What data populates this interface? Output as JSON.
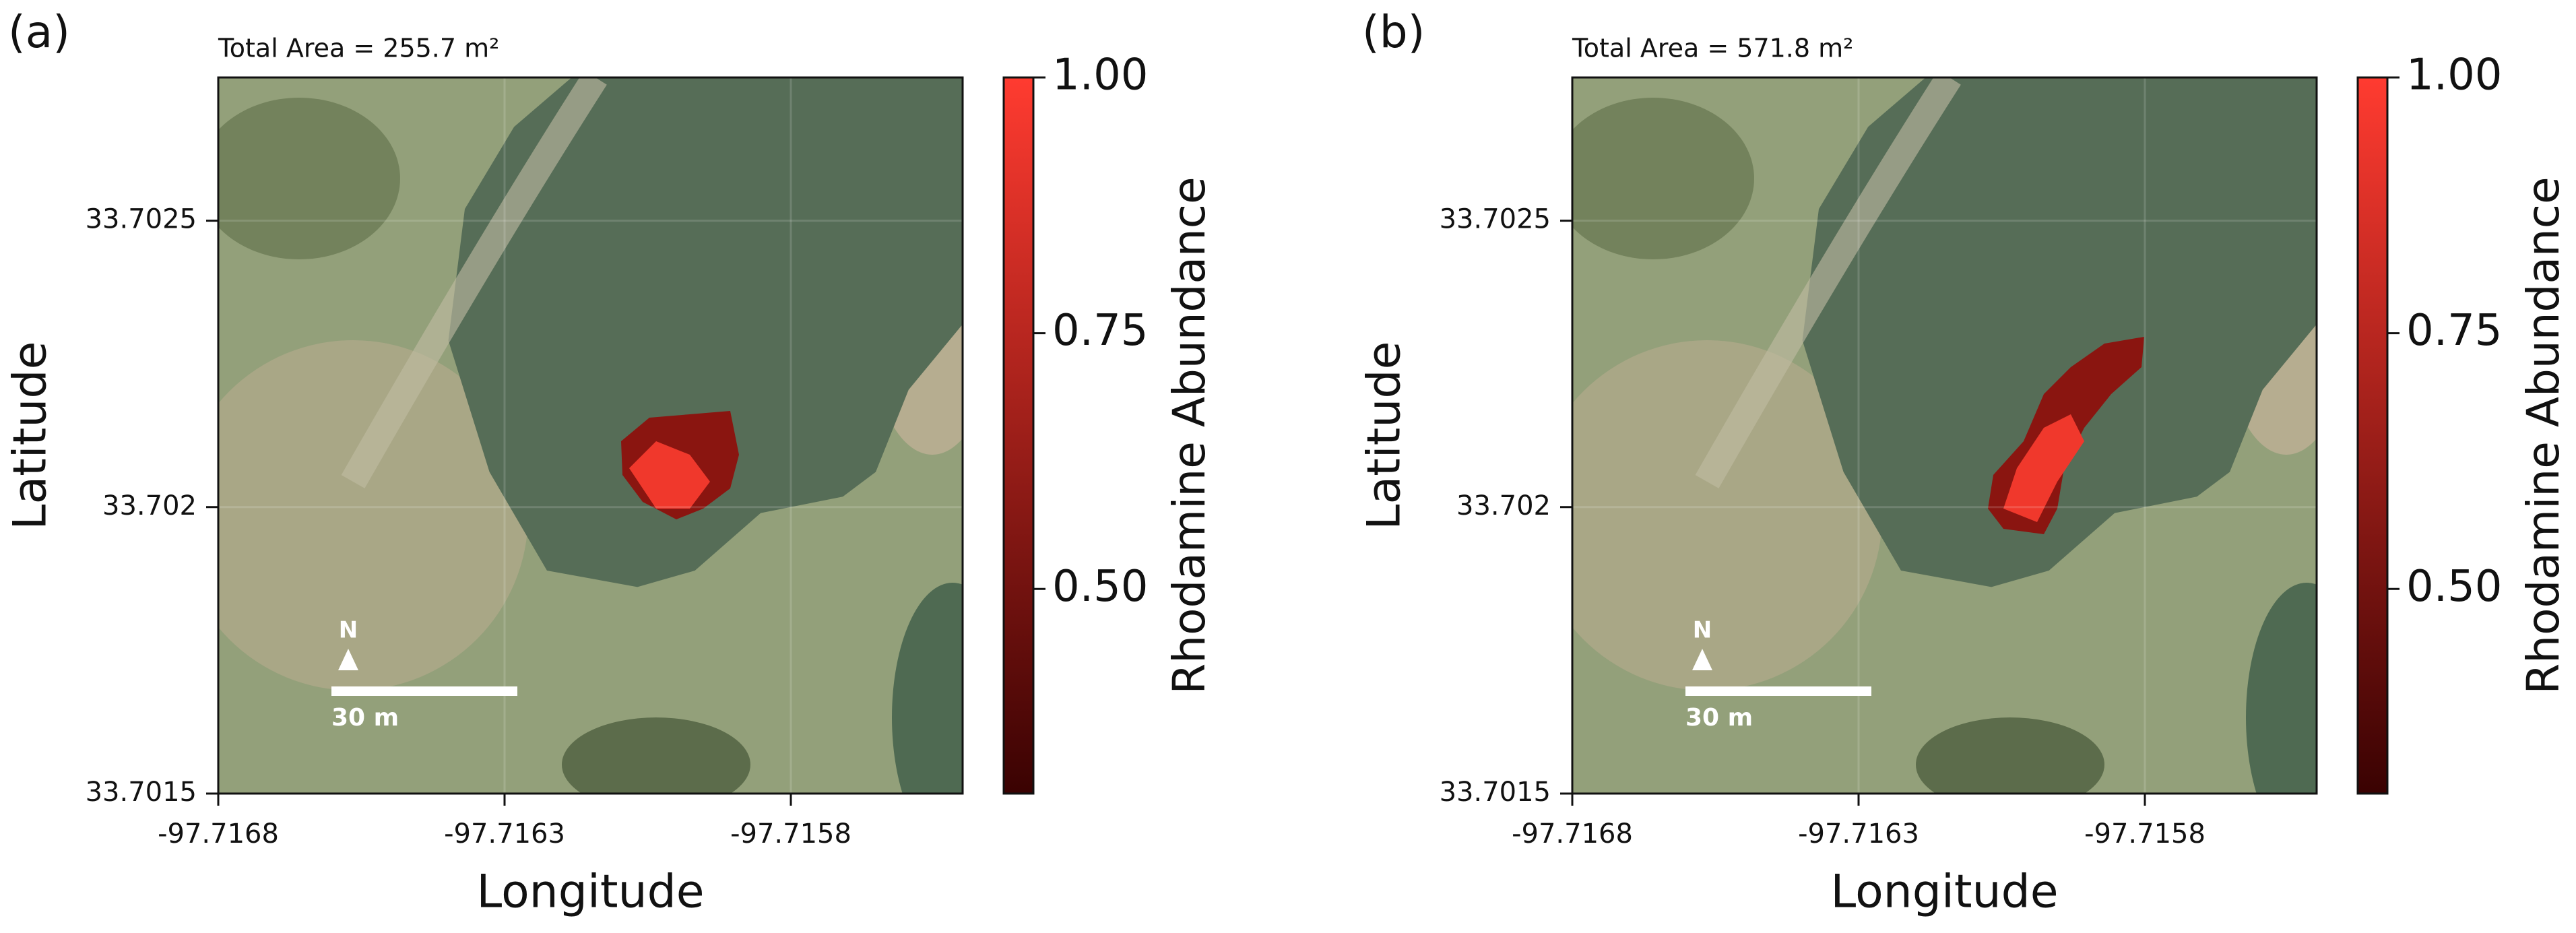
{
  "chart_data": [
    {
      "type": "map",
      "panel_label": "(a)",
      "annotation": "Total Area = 255.7 m²",
      "xlabel": "Longitude",
      "ylabel": "Latitude",
      "colorbar_label": "Rhodamine Abundance",
      "xlim": [
        -97.7168,
        -97.7155
      ],
      "ylim": [
        33.7015,
        33.70275
      ],
      "xticks": [
        -97.7168,
        -97.7163,
        -97.7158
      ],
      "yticks": [
        33.7015,
        33.702,
        33.7025
      ],
      "grid": true,
      "colorbar_lim": [
        0.3,
        1.0
      ],
      "colorbar_ticks": [
        {
          "value": 0.5,
          "label": "0.50"
        },
        {
          "value": 0.75,
          "label": "0.75"
        },
        {
          "value": 1.0,
          "label": "1.00"
        }
      ],
      "cmap_colors": [
        "#3a0202",
        "#ff3b30"
      ],
      "north_label": "N",
      "scale_bar_label": "30 m"
    },
    {
      "type": "map",
      "panel_label": "(b)",
      "annotation": "Total Area = 571.8 m²",
      "xlabel": "Longitude",
      "ylabel": "Latitude",
      "colorbar_label": "Rhodamine Abundance",
      "xlim": [
        -97.7168,
        -97.7155
      ],
      "ylim": [
        33.7015,
        33.70275
      ],
      "xticks": [
        -97.7168,
        -97.7163,
        -97.7158
      ],
      "yticks": [
        33.7015,
        33.702,
        33.7025
      ],
      "grid": true,
      "colorbar_lim": [
        0.3,
        1.0
      ],
      "colorbar_ticks": [
        {
          "value": 0.5,
          "label": "0.50"
        },
        {
          "value": 0.75,
          "label": "0.75"
        },
        {
          "value": 1.0,
          "label": "1.00"
        }
      ],
      "cmap_colors": [
        "#3a0202",
        "#ff3b30"
      ],
      "north_label": "N",
      "scale_bar_label": "30 m"
    }
  ]
}
